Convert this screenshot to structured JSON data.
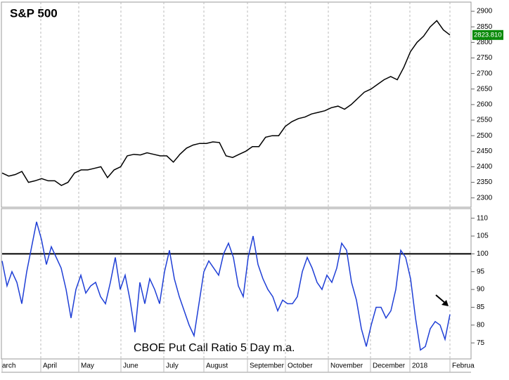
{
  "chart_data": [
    {
      "type": "line",
      "title": "S&P 500",
      "series": [
        {
          "name": "S&P 500",
          "color": "#000000",
          "values": [
            2380,
            2370,
            2375,
            2385,
            2350,
            2355,
            2362,
            2355,
            2355,
            2340,
            2350,
            2380,
            2390,
            2390,
            2395,
            2400,
            2365,
            2390,
            2400,
            2435,
            2440,
            2438,
            2445,
            2440,
            2435,
            2435,
            2415,
            2440,
            2460,
            2470,
            2475,
            2475,
            2480,
            2478,
            2435,
            2430,
            2440,
            2450,
            2465,
            2465,
            2495,
            2500,
            2500,
            2530,
            2545,
            2555,
            2560,
            2570,
            2575,
            2580,
            2590,
            2595,
            2585,
            2600,
            2620,
            2640,
            2650,
            2665,
            2680,
            2690,
            2680,
            2720,
            2770,
            2800,
            2820,
            2850,
            2870,
            2840,
            2823.81
          ]
        }
      ],
      "last_value_label": "2823.810",
      "ylim": [
        2270,
        2925
      ],
      "yticks": [
        2300,
        2350,
        2400,
        2450,
        2500,
        2550,
        2600,
        2650,
        2700,
        2750,
        2800,
        2850,
        2900
      ],
      "grid": true
    },
    {
      "type": "line",
      "title": "CBOE Put Call Ratio 5 Day m.a.",
      "series": [
        {
          "name": "CBOE Put Call Ratio 5 Day m.a.",
          "color": "#1f3fd6",
          "values": [
            98,
            91,
            95,
            92,
            86,
            95,
            102,
            109,
            104,
            97,
            102,
            99,
            96,
            90,
            82,
            90,
            94,
            89,
            91,
            92,
            88,
            86,
            92,
            99,
            90,
            94,
            87,
            78,
            92,
            86,
            93,
            90,
            86,
            95,
            101,
            93,
            88,
            84,
            80,
            77,
            86,
            95,
            98,
            96,
            94,
            100,
            103,
            99,
            91,
            88,
            99,
            105,
            97,
            93,
            90,
            88,
            84,
            87,
            86,
            86,
            88,
            95,
            99,
            96,
            92,
            90,
            94,
            92,
            96,
            103,
            101,
            92,
            87,
            79,
            74,
            80,
            85,
            85,
            82,
            84,
            90,
            101,
            99,
            93,
            82,
            73,
            74,
            79,
            81,
            80,
            76,
            83
          ]
        }
      ],
      "hline": 100,
      "ylim": [
        70.5,
        112.5
      ],
      "yticks": [
        75,
        80,
        85,
        90,
        95,
        100,
        105,
        110
      ],
      "month_labels": [
        "arch",
        "April",
        "May",
        "June",
        "July",
        "August",
        "September",
        "October",
        "November",
        "December",
        "2018",
        "Februa"
      ],
      "grid": true
    }
  ]
}
